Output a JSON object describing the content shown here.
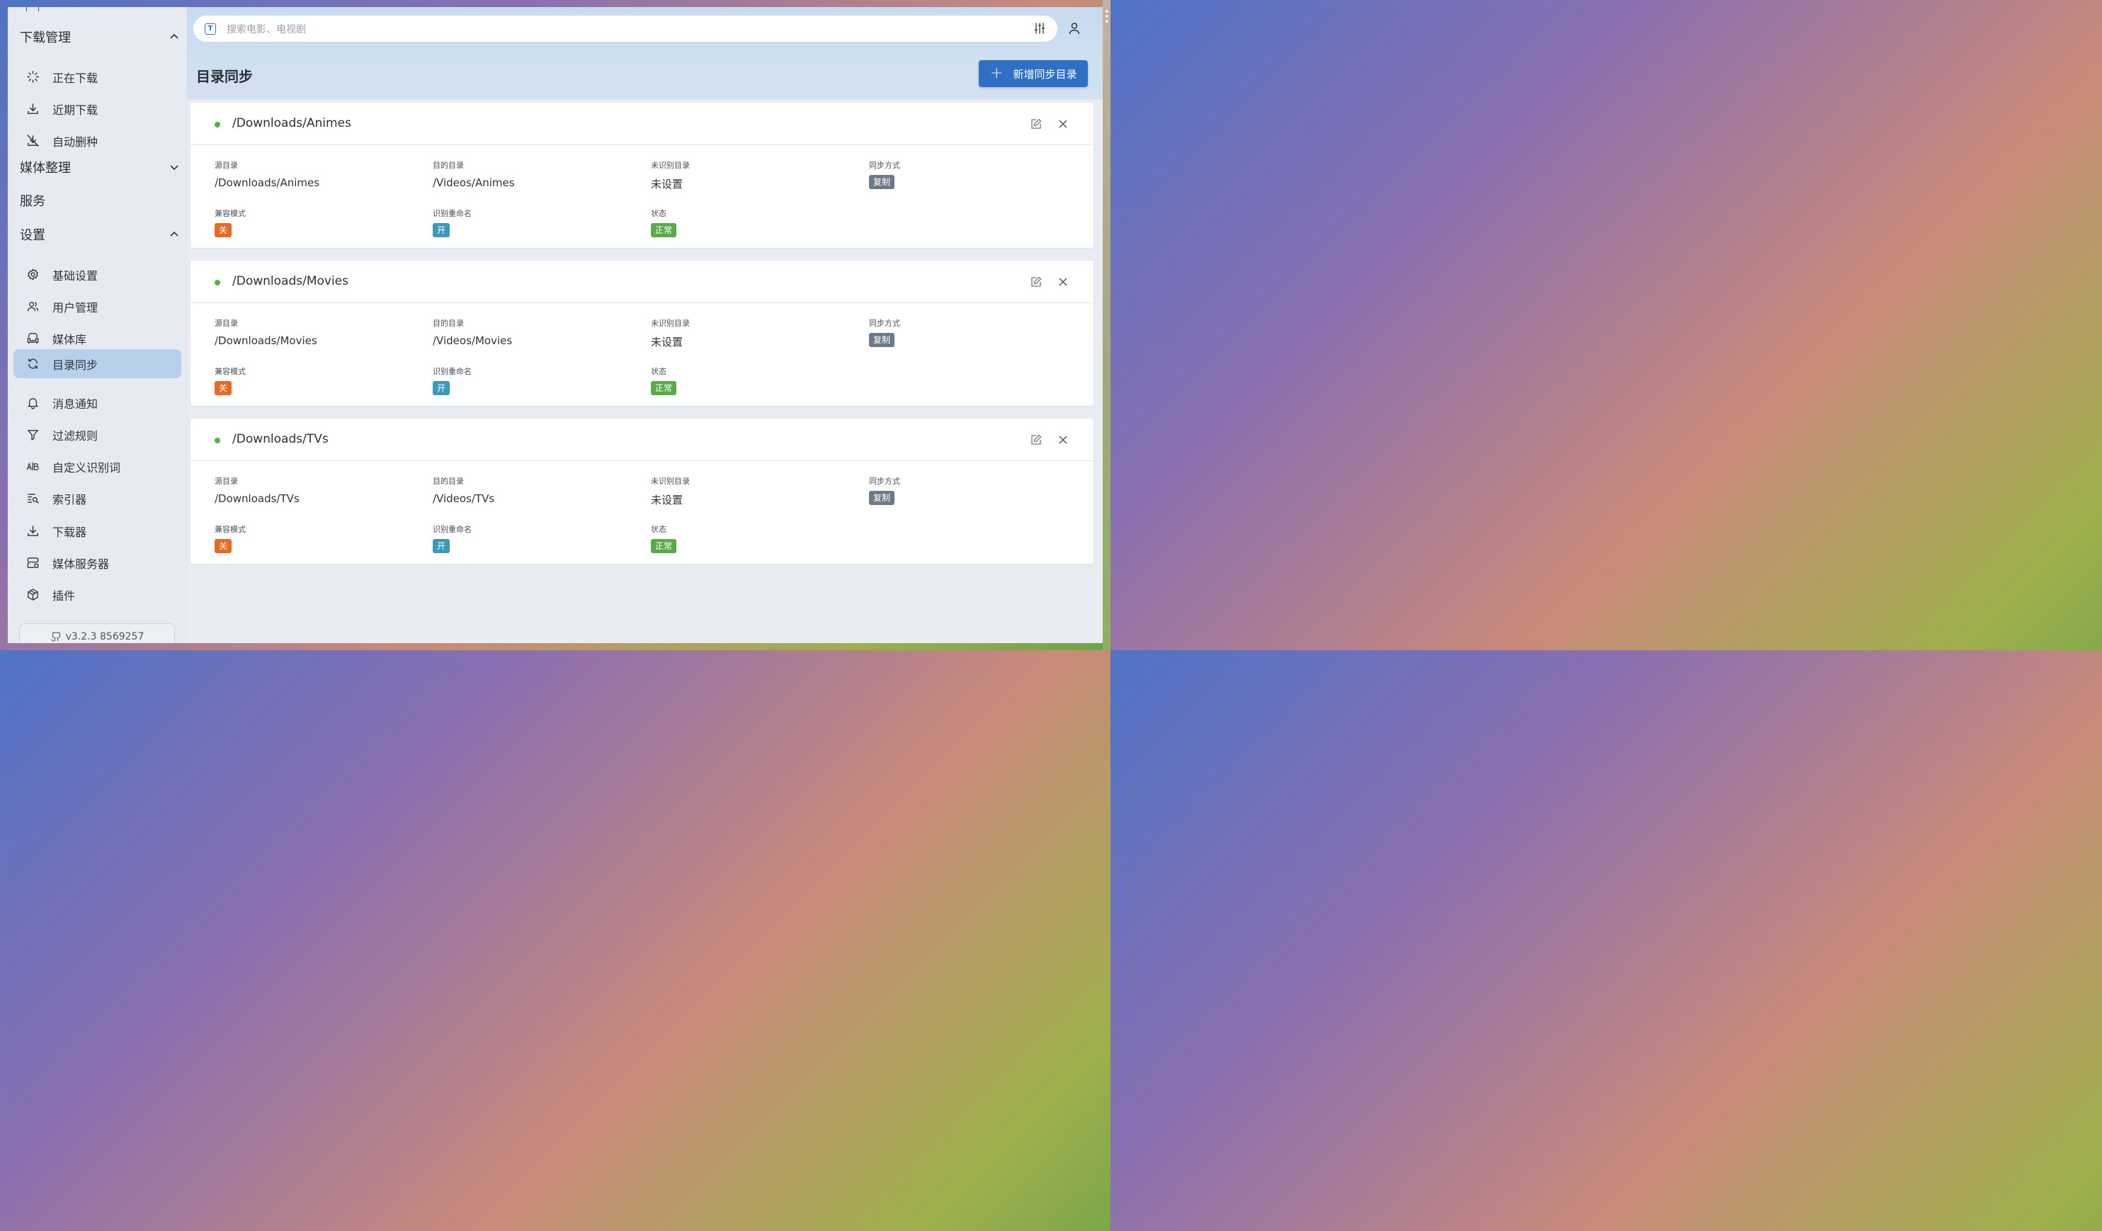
{
  "sidebar": {
    "groups": {
      "download": "下载管理",
      "media": "媒体整理",
      "service": "服务",
      "settings": "设置"
    },
    "download_items": [
      {
        "label": "正在下载",
        "icon": "loader-icon"
      },
      {
        "label": "近期下载",
        "icon": "download-icon"
      },
      {
        "label": "自动删种",
        "icon": "download-off-icon"
      }
    ],
    "settings_items": [
      {
        "label": "基础设置",
        "icon": "gear-icon"
      },
      {
        "label": "用户管理",
        "icon": "users-icon"
      },
      {
        "label": "媒体库",
        "icon": "armchair-icon"
      },
      {
        "label": "目录同步",
        "icon": "refresh-icon",
        "active": true
      },
      {
        "label": "消息通知",
        "icon": "bell-icon"
      },
      {
        "label": "过滤规则",
        "icon": "filter-icon"
      },
      {
        "label": "自定义识别词",
        "icon": "text-recognition-icon"
      },
      {
        "label": "索引器",
        "icon": "zoom-list-icon"
      },
      {
        "label": "下载器",
        "icon": "download-icon"
      },
      {
        "label": "媒体服务器",
        "icon": "server-icon"
      },
      {
        "label": "插件",
        "icon": "package-icon"
      }
    ],
    "version": "v3.2.3 8569257"
  },
  "header": {
    "search_placeholder": "搜索电影、电视剧",
    "search_prefix": "T"
  },
  "page": {
    "title": "目录同步",
    "add_button": "新增同步目录"
  },
  "labels": {
    "source": "源目录",
    "dest": "目的目录",
    "unknown": "未识别目录",
    "mode": "同步方式",
    "compat": "兼容模式",
    "rename": "识别重命名",
    "status": "状态"
  },
  "colors": {
    "accent": "#2f6fc4",
    "status_dot": "#5cae4a",
    "badge_gray": "#6d7a8a",
    "badge_orange": "#e66a22",
    "badge_teal": "#3e98b8",
    "badge_green": "#5ca84a"
  },
  "cards": [
    {
      "title": "/Downloads/Animes",
      "source": "/Downloads/Animes",
      "dest": "/Videos/Animes",
      "unknown": "未设置",
      "mode": "复制",
      "compat": "关",
      "rename": "开",
      "status": "正常"
    },
    {
      "title": "/Downloads/Movies",
      "source": "/Downloads/Movies",
      "dest": "/Videos/Movies",
      "unknown": "未设置",
      "mode": "复制",
      "compat": "关",
      "rename": "开",
      "status": "正常"
    },
    {
      "title": "/Downloads/TVs",
      "source": "/Downloads/TVs",
      "dest": "/Videos/TVs",
      "unknown": "未设置",
      "mode": "复制",
      "compat": "关",
      "rename": "开",
      "status": "正常"
    }
  ]
}
